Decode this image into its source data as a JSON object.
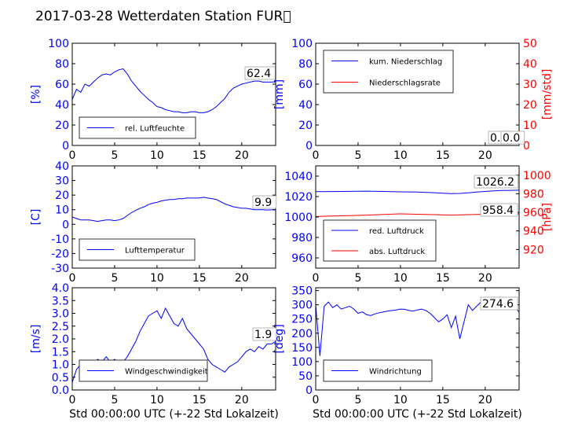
{
  "figure_title": "2017-03-28 Wetterdaten Station FUR\u0000",
  "chart_data": [
    {
      "type": "line",
      "xlabel": "",
      "xlim": [
        0,
        24
      ],
      "xticks": [
        0,
        5,
        10,
        15,
        20
      ],
      "ylabel": "[%]",
      "ylim": [
        0,
        100
      ],
      "yticks": [
        0,
        20,
        40,
        60,
        80,
        100
      ],
      "legend": "bottom-left",
      "last_value_label": "62.4",
      "series": [
        {
          "name": "rel. Luftfeuchte",
          "color": "#0000ff",
          "x": [
            0,
            0.5,
            1,
            1.5,
            2,
            2.5,
            3,
            3.5,
            4,
            4.5,
            5,
            5.5,
            6,
            6.5,
            7,
            7.5,
            8,
            8.5,
            9,
            9.5,
            10,
            10.5,
            11,
            11.5,
            12,
            12.5,
            13,
            13.5,
            14,
            14.5,
            15,
            15.5,
            16,
            16.5,
            17,
            17.5,
            18,
            18.5,
            19,
            19.5,
            20,
            20.5,
            21,
            21.5,
            22,
            22.5,
            23,
            23.5,
            24
          ],
          "y": [
            45,
            55,
            52,
            60,
            58,
            62,
            66,
            69,
            70,
            69,
            72,
            74,
            75,
            70,
            63,
            58,
            53,
            49,
            45,
            42,
            38,
            37,
            35,
            34,
            33,
            33,
            32,
            32,
            33,
            33,
            32,
            32,
            33,
            35,
            38,
            42,
            46,
            52,
            56,
            58,
            60,
            61,
            62,
            63,
            63,
            62,
            62,
            62,
            62.4
          ]
        }
      ]
    },
    {
      "type": "line",
      "xlabel": "",
      "xlim": [
        0,
        24
      ],
      "xticks": [
        0,
        5,
        10,
        15,
        20
      ],
      "ylabel": "[mm]",
      "ylim": [
        0,
        100
      ],
      "yticks": [
        0,
        20,
        40,
        60,
        80,
        100
      ],
      "y2label": "[mm/std]",
      "y2lim": [
        0,
        50
      ],
      "y2ticks": [
        0,
        10,
        20,
        30,
        40,
        50
      ],
      "legend": "top-left",
      "last_value_labels": [
        "0.0",
        "0.0"
      ],
      "series": [
        {
          "name": "kum. Niederschlag",
          "color": "#0000ff",
          "axis": "left",
          "x": [
            0,
            24
          ],
          "y": [
            0,
            0
          ]
        },
        {
          "name": "Niederschlagsrate",
          "color": "#ff0000",
          "axis": "right",
          "x": [
            0,
            24
          ],
          "y": [
            0,
            0
          ]
        }
      ]
    },
    {
      "type": "line",
      "xlabel": "",
      "xlim": [
        0,
        24
      ],
      "xticks": [
        0,
        5,
        10,
        15,
        20
      ],
      "ylabel": "[C]",
      "ylim": [
        -30,
        40
      ],
      "yticks": [
        -30,
        -20,
        -10,
        0,
        10,
        20,
        30,
        40
      ],
      "legend": "bottom-left",
      "last_value_label": "9.9",
      "series": [
        {
          "name": "Lufttemperatur",
          "color": "#0000ff",
          "x": [
            0,
            0.5,
            1,
            1.5,
            2,
            2.5,
            3,
            3.5,
            4,
            4.5,
            5,
            5.5,
            6,
            6.5,
            7,
            7.5,
            8,
            8.5,
            9,
            9.5,
            10,
            10.5,
            11,
            11.5,
            12,
            12.5,
            13,
            13.5,
            14,
            14.5,
            15,
            15.5,
            16,
            16.5,
            17,
            17.5,
            18,
            18.5,
            19,
            19.5,
            20,
            20.5,
            21,
            21.5,
            22,
            22.5,
            23,
            23.5,
            24
          ],
          "y": [
            5,
            4,
            3,
            3,
            3,
            2.5,
            2,
            2.5,
            3,
            3,
            2.5,
            3,
            4,
            6,
            8,
            9.5,
            11,
            12,
            13.5,
            14.5,
            15,
            16,
            16.5,
            17,
            17,
            17.5,
            17.5,
            18,
            18,
            18,
            18,
            18.5,
            18,
            17.5,
            17,
            15.5,
            14,
            13,
            12,
            11.5,
            11,
            11,
            10.5,
            10,
            10,
            10,
            9.8,
            9.9,
            9.9
          ]
        }
      ]
    },
    {
      "type": "line",
      "xlabel": "",
      "xlim": [
        0,
        24
      ],
      "xticks": [
        0,
        5,
        10,
        15,
        20
      ],
      "ylim": [
        950,
        1050
      ],
      "yticks": [
        960,
        980,
        1000,
        1020,
        1040
      ],
      "y2label": "[hPa]",
      "y2lim": [
        900,
        1010
      ],
      "y2ticks": [
        920,
        940,
        960,
        980,
        1000
      ],
      "legend": "bottom-left",
      "last_value_labels": [
        "1026.2",
        "958.4"
      ],
      "series": [
        {
          "name": "red. Luftdruck",
          "color": "#0000ff",
          "axis": "left",
          "x": [
            0,
            2,
            4,
            6,
            8,
            10,
            12,
            14,
            15,
            16,
            17,
            18,
            19,
            20,
            21,
            22,
            23,
            24
          ],
          "y": [
            1024.8,
            1024.9,
            1025.1,
            1025.3,
            1025.0,
            1024.6,
            1024.4,
            1023.8,
            1023.2,
            1022.9,
            1023.1,
            1023.6,
            1024.4,
            1025.0,
            1025.6,
            1026.0,
            1026.1,
            1026.2
          ]
        },
        {
          "name": "abs. Luftdruck",
          "color": "#ff0000",
          "axis": "right",
          "x": [
            0,
            2,
            4,
            6,
            8,
            10,
            12,
            14,
            16,
            18,
            20,
            22,
            24
          ],
          "y": [
            955.5,
            956.0,
            956.5,
            957.0,
            957.8,
            958.4,
            958.0,
            957.5,
            957.0,
            957.5,
            958.0,
            958.2,
            958.4
          ]
        }
      ]
    },
    {
      "type": "line",
      "xlabel": "Std 00:00:00 UTC (+-22 Std Lokalzeit)",
      "xlim": [
        0,
        24
      ],
      "xticks": [
        0,
        5,
        10,
        15,
        20
      ],
      "ylabel": "[m/s]",
      "ylim": [
        0,
        4
      ],
      "yticks": [
        0.0,
        0.5,
        1.0,
        1.5,
        2.0,
        2.5,
        3.0,
        3.5,
        4.0
      ],
      "legend": "bottom-left",
      "last_value_label": "1.9",
      "series": [
        {
          "name": "Windgeschwindigkeit",
          "color": "#0000ff",
          "x": [
            0,
            0.5,
            1,
            1.5,
            2,
            2.5,
            3,
            3.5,
            4,
            4.5,
            5,
            5.5,
            6,
            6.5,
            7,
            7.5,
            8,
            8.5,
            9,
            9.5,
            10,
            10.5,
            11,
            11.5,
            12,
            12.5,
            13,
            13.5,
            14,
            14.5,
            15,
            15.5,
            16,
            16.5,
            17,
            17.5,
            18,
            18.5,
            19,
            19.5,
            20,
            20.5,
            21,
            21.5,
            22,
            22.5,
            23,
            23.5,
            24
          ],
          "y": [
            0.3,
            0.8,
            1.0,
            1.1,
            0.9,
            1.0,
            1.2,
            1.1,
            1.3,
            1.1,
            1.2,
            1.0,
            1.1,
            1.3,
            1.6,
            1.9,
            2.3,
            2.6,
            2.9,
            3.0,
            3.1,
            2.8,
            3.2,
            2.9,
            2.6,
            2.5,
            2.8,
            2.4,
            2.2,
            2.0,
            1.8,
            1.6,
            1.2,
            1.0,
            0.9,
            0.8,
            0.7,
            0.9,
            1.0,
            1.1,
            1.3,
            1.5,
            1.6,
            1.5,
            1.7,
            1.6,
            1.8,
            1.8,
            1.9
          ]
        }
      ]
    },
    {
      "type": "line",
      "xlabel": "Std 00:00:00 UTC (+-22 Std Lokalzeit)",
      "xlim": [
        0,
        24
      ],
      "xticks": [
        0,
        5,
        10,
        15,
        20
      ],
      "ylabel": "[deg]",
      "ylim": [
        0,
        360
      ],
      "yticks": [
        0,
        50,
        100,
        150,
        200,
        250,
        300,
        350
      ],
      "legend": "bottom-left",
      "last_value_label": "274.6",
      "series": [
        {
          "name": "Windrichtung",
          "color": "#0000ff",
          "x": [
            0,
            0.5,
            1,
            1.5,
            2,
            2.5,
            3,
            3.5,
            4,
            4.5,
            5,
            5.5,
            6,
            6.5,
            7,
            7.5,
            8,
            8.5,
            9,
            9.5,
            10,
            10.5,
            11,
            11.5,
            12,
            12.5,
            13,
            13.5,
            14,
            14.5,
            15,
            15.5,
            16,
            16.5,
            17,
            17.5,
            18,
            18.5,
            19,
            19.5,
            20,
            20.5,
            21,
            21.5,
            22,
            22.5,
            23,
            23.5,
            24
          ],
          "y": [
            300,
            120,
            295,
            310,
            290,
            300,
            285,
            290,
            295,
            285,
            270,
            275,
            265,
            262,
            268,
            272,
            275,
            278,
            280,
            282,
            285,
            284,
            280,
            278,
            282,
            285,
            280,
            270,
            255,
            240,
            250,
            265,
            220,
            260,
            180,
            240,
            300,
            280,
            295,
            310,
            305,
            300,
            298,
            302,
            295,
            300,
            290,
            292,
            274.6
          ]
        }
      ]
    }
  ]
}
